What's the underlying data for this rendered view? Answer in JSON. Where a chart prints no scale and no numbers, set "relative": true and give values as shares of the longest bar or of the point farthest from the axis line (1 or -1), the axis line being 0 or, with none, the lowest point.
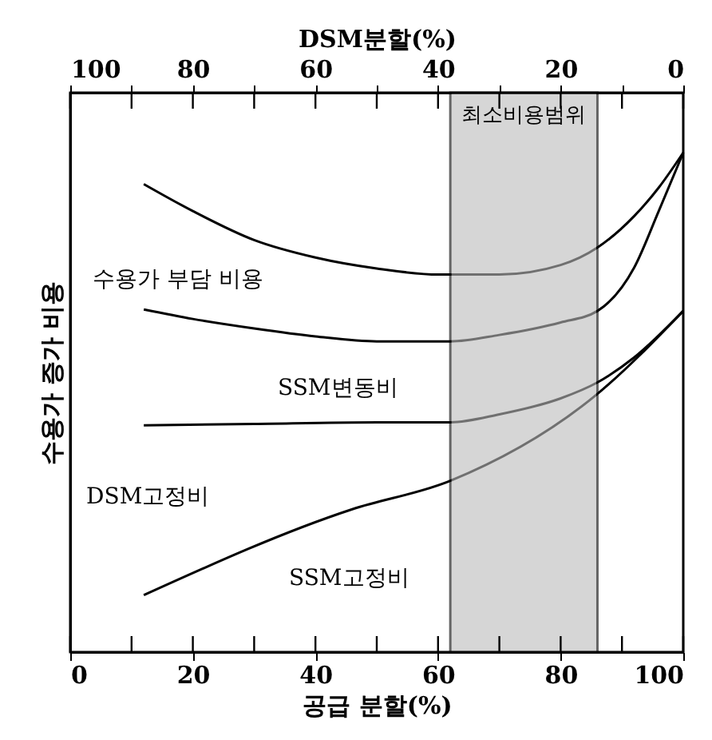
{
  "chart_data": {
    "type": "line",
    "relative": true,
    "xlabel": "공급 분할(%)",
    "x2label": "DSM분할(%)",
    "ylabel": "수용가 증가 비용",
    "xlim": [
      0,
      100
    ],
    "xticks": [
      0,
      {
        "value": 10,
        "label": null
      },
      20,
      {
        "value": 30,
        "label": null
      },
      40,
      {
        "value": 50,
        "label": null
      },
      60,
      {
        "value": 70,
        "label": null
      },
      80,
      {
        "value": 90,
        "label": null
      },
      100
    ],
    "x2lim": [
      100,
      0
    ],
    "x2ticks": [
      100,
      {
        "value": 90,
        "label": null
      },
      80,
      {
        "value": 70,
        "label": null
      },
      60,
      {
        "value": 50,
        "label": null
      },
      40,
      {
        "value": 30,
        "label": null
      },
      20,
      {
        "value": 10,
        "label": null
      },
      0
    ],
    "grid": false,
    "series": [
      {
        "color": "#000000",
        "x": [
          12,
          20,
          30,
          40,
          50,
          60,
          70,
          80,
          86,
          92,
          96,
          100
        ],
        "values": [
          0.937,
          0.883,
          0.825,
          0.79,
          0.768,
          0.756,
          0.756,
          0.775,
          0.81,
          0.873,
          0.93,
          1.0
        ]
      },
      {
        "color": "#000000",
        "x": [
          12,
          20,
          30,
          40,
          50,
          62,
          70,
          80,
          86,
          92,
          96,
          100
        ],
        "values": [
          0.686,
          0.667,
          0.648,
          0.632,
          0.622,
          0.622,
          0.635,
          0.66,
          0.683,
          0.77,
          0.883,
          1.0
        ]
      },
      {
        "color": "#000000",
        "x": [
          12,
          30,
          50,
          62,
          70,
          80,
          86,
          92,
          100
        ],
        "values": [
          0.454,
          0.457,
          0.46,
          0.46,
          0.476,
          0.508,
          0.54,
          0.59,
          0.683
        ]
      },
      {
        "color": "#000000",
        "x": [
          12,
          46,
          62,
          86,
          100
        ],
        "values": [
          0.114,
          0.286,
          0.343,
          0.517,
          0.683
        ]
      }
    ],
    "bands": [
      {
        "axis": "x",
        "from": 62,
        "to": 86,
        "label": "최소비용범위",
        "color": "#bbbbbb"
      }
    ],
    "annotations": [
      "수용가 부담 비용",
      "SSM변동비",
      "DSM고정비",
      "SSM고정비"
    ]
  }
}
